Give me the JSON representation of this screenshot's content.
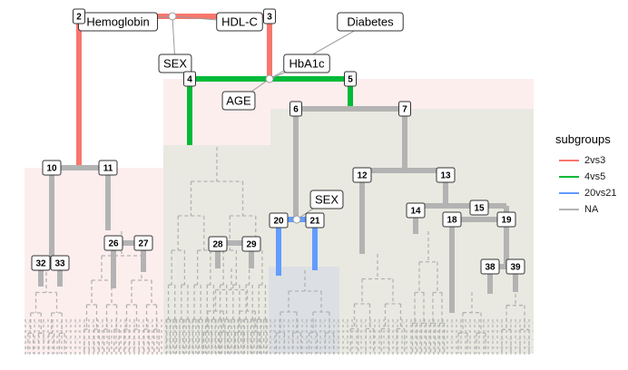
{
  "legend": {
    "title": "subgroups",
    "items": [
      {
        "label": "2vs3",
        "color": "#f8766d"
      },
      {
        "label": "4vs5",
        "color": "#00ba38"
      },
      {
        "label": "20vs21",
        "color": "#619cff"
      },
      {
        "label": "NA",
        "color": "#b3b3b3"
      }
    ]
  },
  "split_labels": [
    "Hemoglobin",
    "HDL-C",
    "SEX",
    "HbA1c",
    "Diabetes",
    "AGE",
    "SEX"
  ],
  "nodes": [
    "2",
    "3",
    "4",
    "5",
    "6",
    "7",
    "10",
    "11",
    "12",
    "13",
    "14",
    "15",
    "18",
    "19",
    "20",
    "21",
    "26",
    "27",
    "28",
    "29",
    "32",
    "33",
    "38",
    "39"
  ],
  "colors": {
    "grey": "#b3b3b3",
    "pink_region": "#fdeeee",
    "beige_region": "#e9e9e1"
  }
}
